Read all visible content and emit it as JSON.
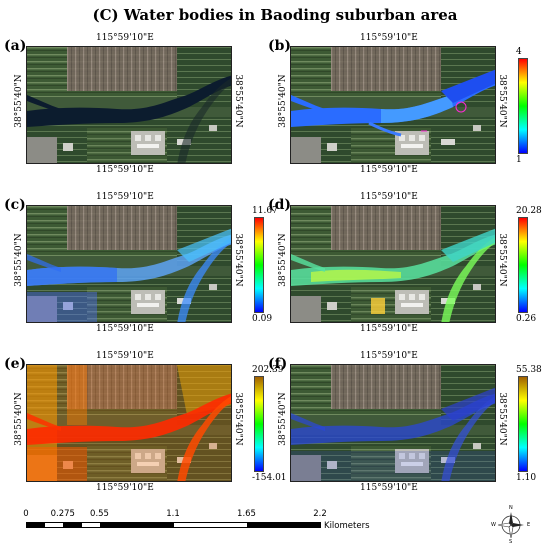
{
  "title": "(C) Water bodies in Baoding suburban area",
  "longitude_label": "115°59'10\"E",
  "latitude_label": "38°55'40\"N",
  "panels": [
    {
      "label": "(a)",
      "overlay": "rgb",
      "colorbar": null
    },
    {
      "label": "(b)",
      "overlay": "class",
      "colorbar": {
        "max": "4",
        "min": "1",
        "colors": [
          "#ff0000",
          "#ffff00",
          "#00ff00",
          "#00ffff",
          "#0000ff"
        ]
      }
    },
    {
      "label": "(c)",
      "overlay": "c",
      "colorbar": {
        "max": "11.67",
        "min": "0.09",
        "colors": [
          "#ff0000",
          "#ffff00",
          "#00ff00",
          "#00ffff",
          "#0000ff"
        ]
      }
    },
    {
      "label": "(d)",
      "overlay": "d",
      "colorbar": {
        "max": "20.28",
        "min": "0.26",
        "colors": [
          "#ff0000",
          "#ffff00",
          "#00ff00",
          "#00ffff",
          "#0000ff"
        ]
      }
    },
    {
      "label": "(e)",
      "overlay": "e",
      "colorbar": {
        "max": "202.39",
        "min": "-154.01",
        "colors": [
          "#a06000",
          "#ffff00",
          "#00ff00",
          "#00ffff",
          "#0000ff"
        ]
      }
    },
    {
      "label": "(f)",
      "overlay": "f",
      "colorbar": {
        "max": "55.38",
        "min": "1.10",
        "colors": [
          "#a06000",
          "#ffff00",
          "#00ff00",
          "#00ffff",
          "#0000ff"
        ]
      }
    }
  ],
  "scale_bar": {
    "ticks": [
      "0",
      "0.275",
      "0.55",
      "1.1",
      "1.65",
      "2.2"
    ],
    "tick_values": [
      0,
      0.275,
      0.55,
      1.1,
      1.65,
      2.2
    ],
    "unit": "Kilometers"
  },
  "compass": {
    "n": "N",
    "s": "S",
    "e": "E",
    "w": "W"
  }
}
